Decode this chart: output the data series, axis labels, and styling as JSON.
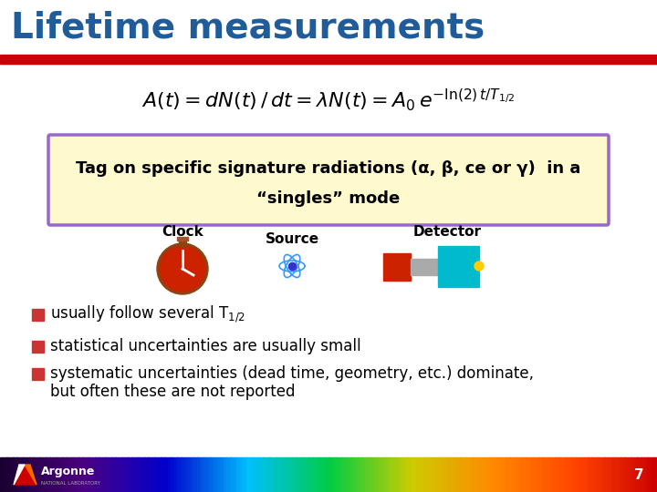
{
  "title": "Lifetime measurements",
  "title_color": "#1F5C99",
  "title_bar_color": "#CC0000",
  "bg_color": "#FFFFFF",
  "formula": "$A(t) = dN(t)/dt = \\lambda N(t) = A_0 e^{-\\ln(2)t/T_{1/2}}$",
  "box_text_line1": "Tag on specific signature radiations (α, β, ce or γ)  in a",
  "box_text_line2": "“singles” mode",
  "box_bg": "#FFFACD",
  "box_border": "#9966CC",
  "bullet_color": "#CC3333",
  "bullet1": "usually follow several T",
  "bullet1_sub": "1/2",
  "bullet2": "statistical uncertainties are usually small",
  "bullet3a": "systematic uncertainties (dead time, geometry, etc.) dominate,",
  "bullet3b": "but often these are not reported",
  "footer_number": "7",
  "footer_bg": "#1A1A2E"
}
